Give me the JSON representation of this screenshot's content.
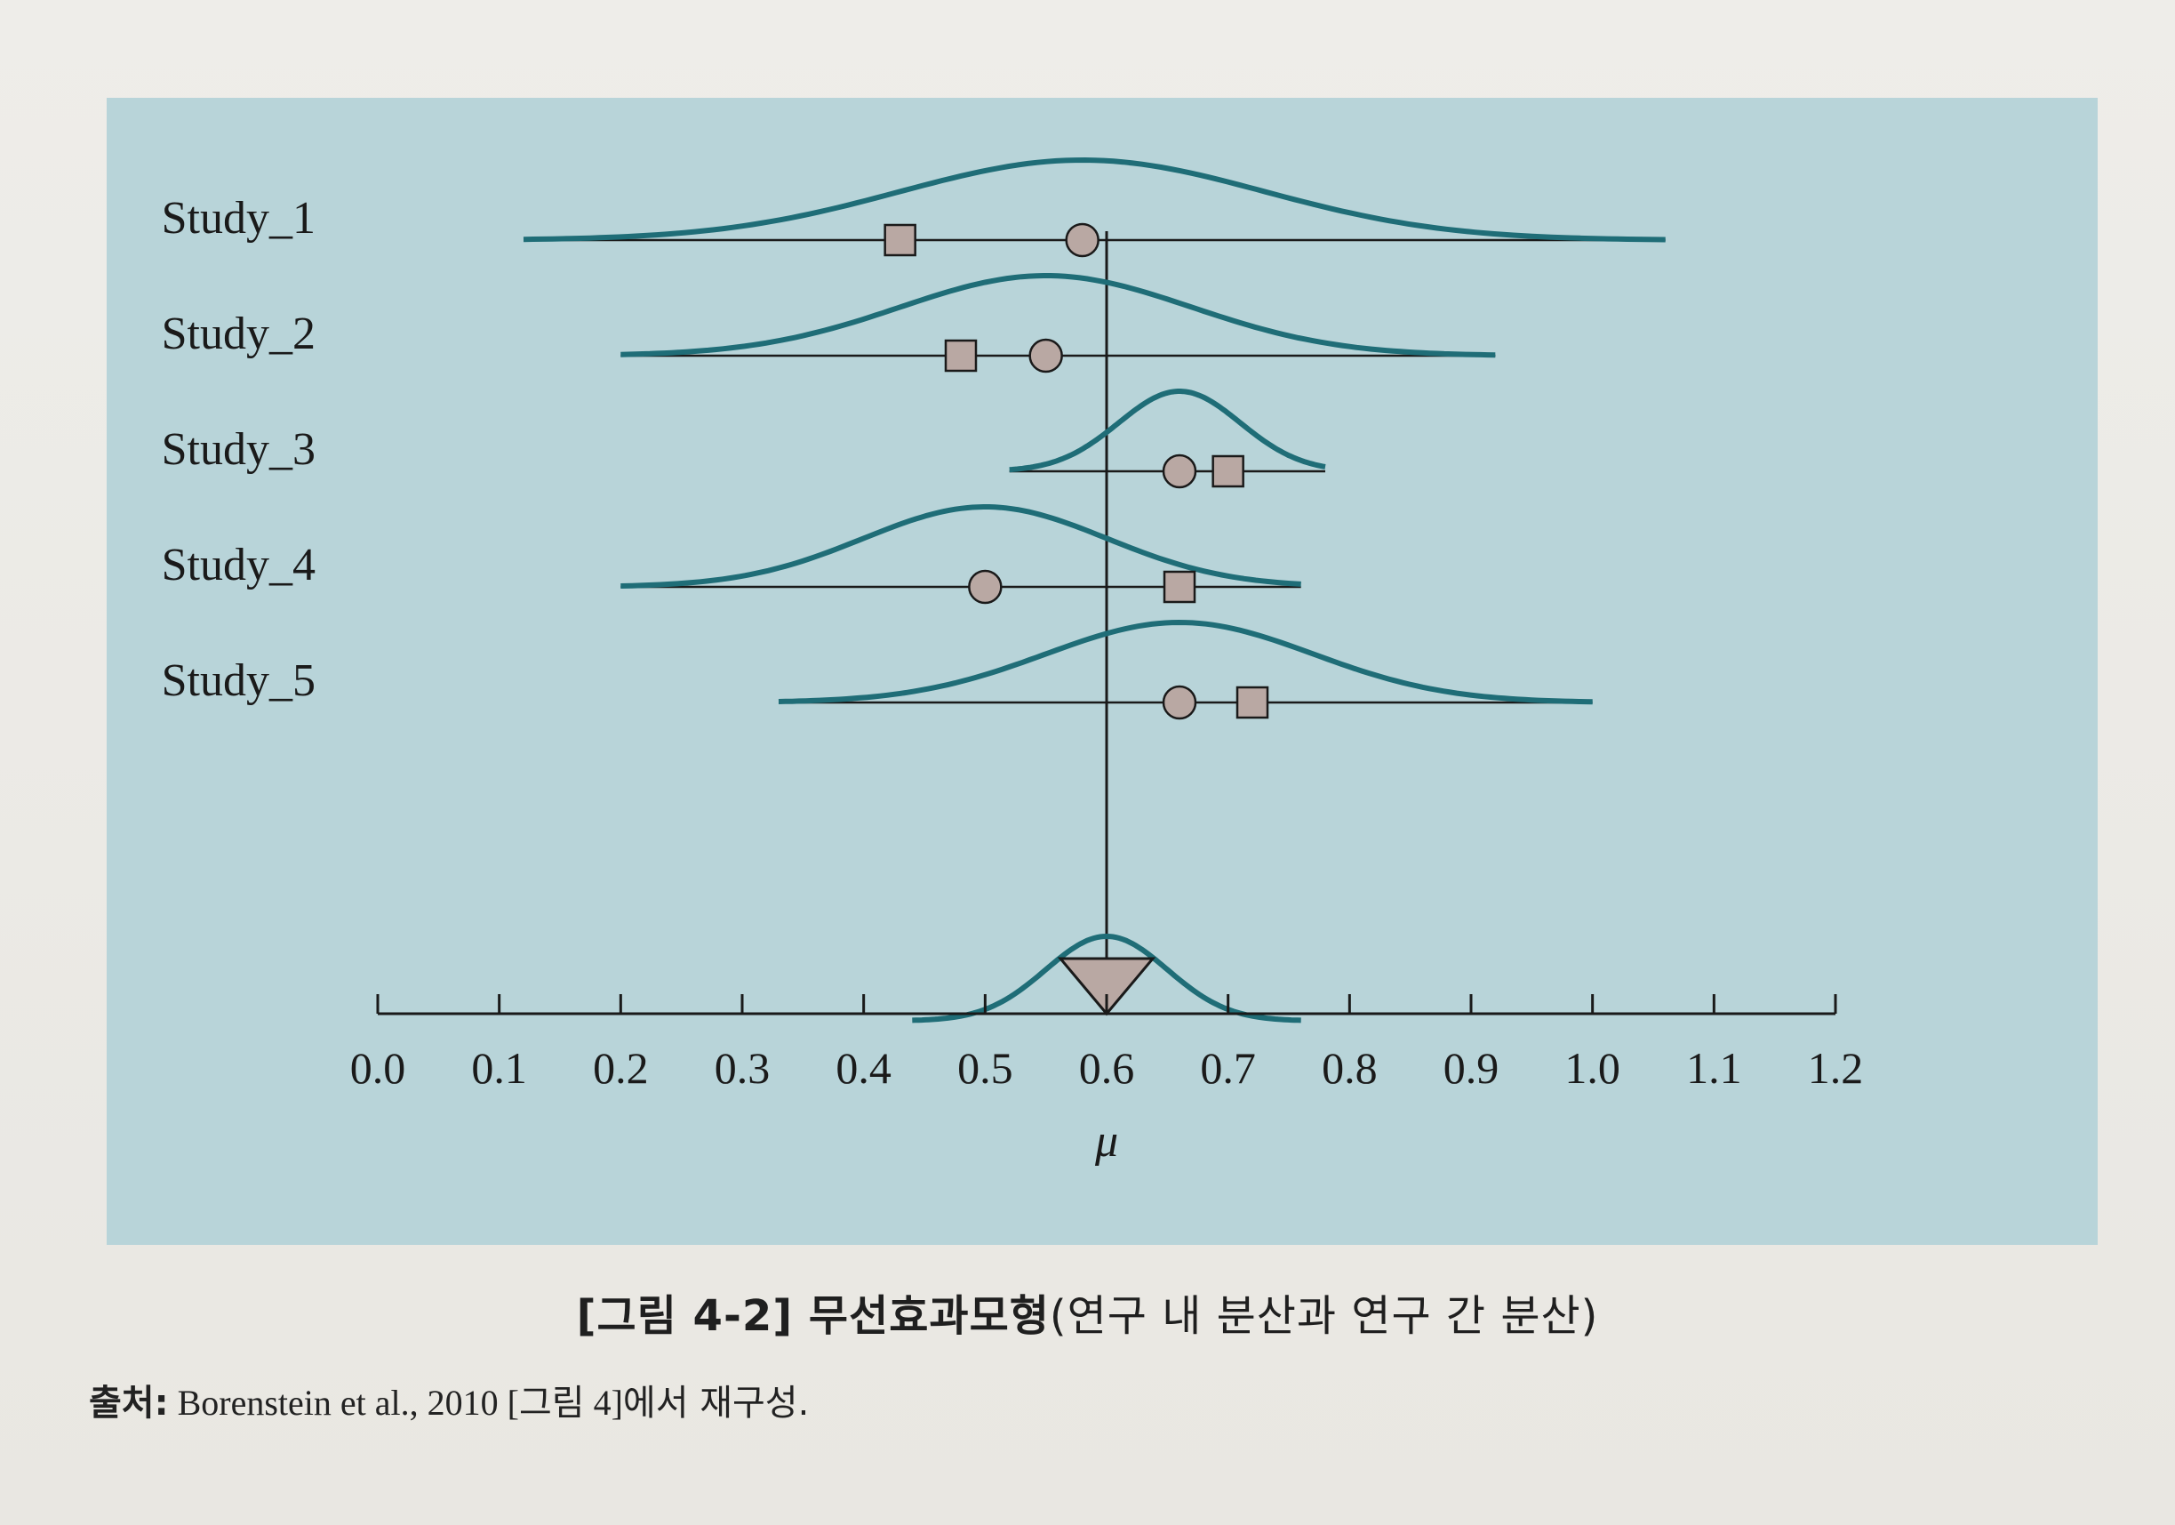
{
  "chart_data": {
    "type": "forest",
    "xlabel": "μ",
    "xlim": [
      0.0,
      1.2
    ],
    "ticks": [
      0.0,
      0.1,
      0.2,
      0.3,
      0.4,
      0.5,
      0.6,
      0.7,
      0.8,
      0.9,
      1.0,
      1.1,
      1.2
    ],
    "tick_labels": [
      "0.0",
      "0.1",
      "0.2",
      "0.3",
      "0.4",
      "0.5",
      "0.6",
      "0.7",
      "0.8",
      "0.9",
      "1.0",
      "1.1",
      "1.2"
    ],
    "reference_mu": 0.6,
    "studies": [
      {
        "label": "Study_1",
        "theta": 0.58,
        "observed": 0.43,
        "range": [
          0.12,
          1.06
        ],
        "sd": 0.15
      },
      {
        "label": "Study_2",
        "theta": 0.55,
        "observed": 0.48,
        "range": [
          0.2,
          0.92
        ],
        "sd": 0.12
      },
      {
        "label": "Study_3",
        "theta": 0.66,
        "observed": 0.7,
        "range": [
          0.52,
          0.78
        ],
        "sd": 0.05
      },
      {
        "label": "Study_4",
        "theta": 0.5,
        "observed": 0.66,
        "range": [
          0.2,
          0.76
        ],
        "sd": 0.1
      },
      {
        "label": "Study_5",
        "theta": 0.66,
        "observed": 0.72,
        "range": [
          0.33,
          1.0
        ],
        "sd": 0.11
      }
    ],
    "summary": {
      "mu": 0.6,
      "range": [
        0.44,
        0.76
      ],
      "sd": 0.05
    },
    "colors": {
      "curve": "#1f6d77",
      "marker_fill": "#b9a8a3",
      "line": "#1a1a1a",
      "panel": "#b8d4d9"
    }
  },
  "caption": {
    "main": "[그림 4-2]  무선효과모형",
    "sub": "(연구 내 분산과 연구 간 분산)"
  },
  "source": {
    "label": "출처:",
    "citation": " Borenstein et al., 2010 [그림 4]",
    "tail": "에서 재구성."
  }
}
